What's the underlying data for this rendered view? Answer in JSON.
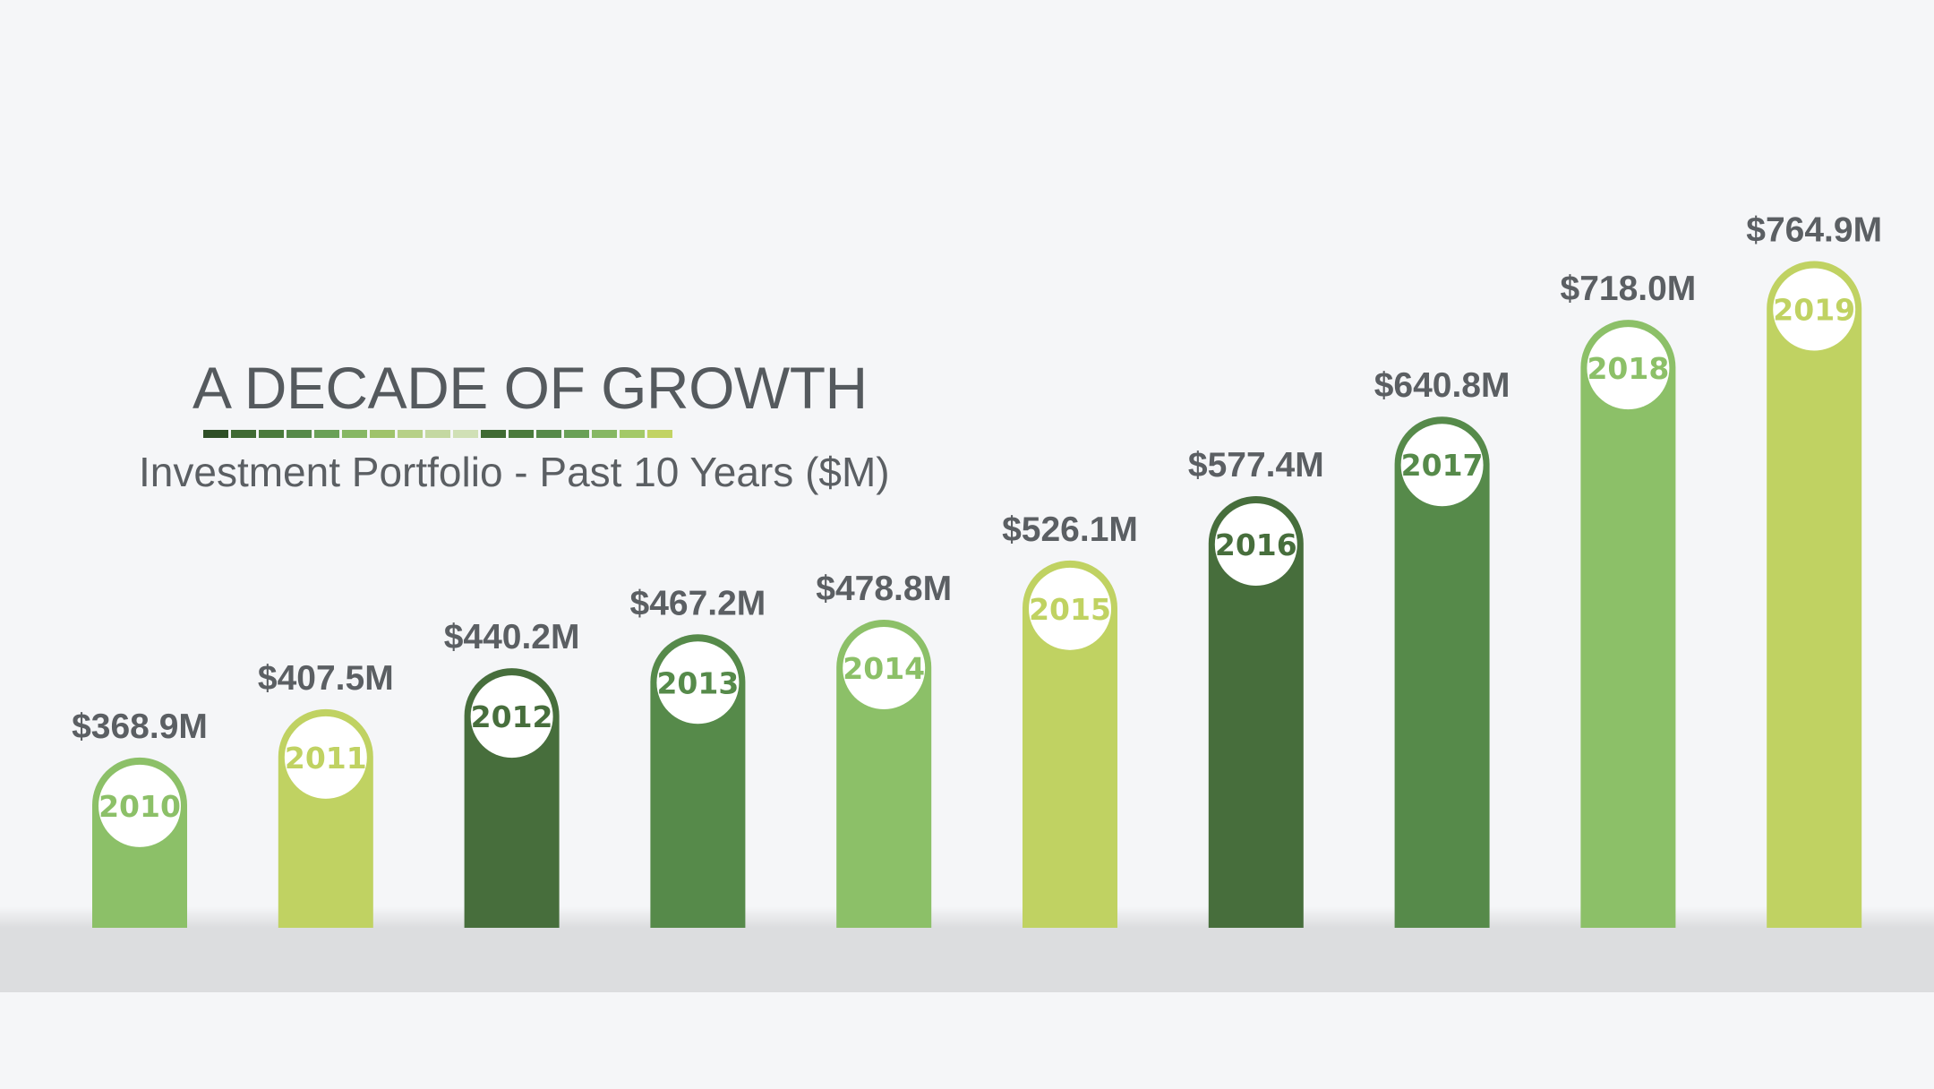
{
  "header": {
    "title": "A DECADE OF GROWTH",
    "subtitle": "Investment Portfolio - Past 10 Years ($M)"
  },
  "stripe_colors": [
    "#2e4f26",
    "#3f6a33",
    "#4a7a3c",
    "#56894a",
    "#69a057",
    "#86b764",
    "#9fc36a",
    "#b6d087",
    "#c4d8a2",
    "#d0e0b6",
    "#3f6a33",
    "#4a7a3c",
    "#56894a",
    "#69a057",
    "#86b764",
    "#a3c968",
    "#c2d363"
  ],
  "chart_data": {
    "type": "bar",
    "title": "A DECADE OF GROWTH",
    "subtitle": "Investment Portfolio - Past 10 Years ($M)",
    "categories": [
      "2010",
      "2011",
      "2012",
      "2013",
      "2014",
      "2015",
      "2016",
      "2017",
      "2018",
      "2019"
    ],
    "values": [
      368.9,
      407.5,
      440.2,
      467.2,
      478.8,
      526.1,
      577.4,
      640.8,
      718.0,
      764.9
    ],
    "value_labels": [
      "$368.9M",
      "$407.5M",
      "$440.2M",
      "$467.2M",
      "$478.8M",
      "$526.1M",
      "$577.4M",
      "$640.8M",
      "$718.0M",
      "$764.9M"
    ],
    "bar_colors": [
      "#8cc068",
      "#c0d262",
      "#476e3c",
      "#568a4a",
      "#8cc068",
      "#c0d262",
      "#476e3c",
      "#568a4a",
      "#8cc068",
      "#c0d262"
    ],
    "label_colors": [
      "#8cc068",
      "#c0d262",
      "#476e3c",
      "#568a4a",
      "#8cc068",
      "#c0d262",
      "#476e3c",
      "#568a4a",
      "#8cc068",
      "#c0d262"
    ],
    "xlabel": "",
    "ylabel": "",
    "grid": false,
    "legend": "none"
  }
}
